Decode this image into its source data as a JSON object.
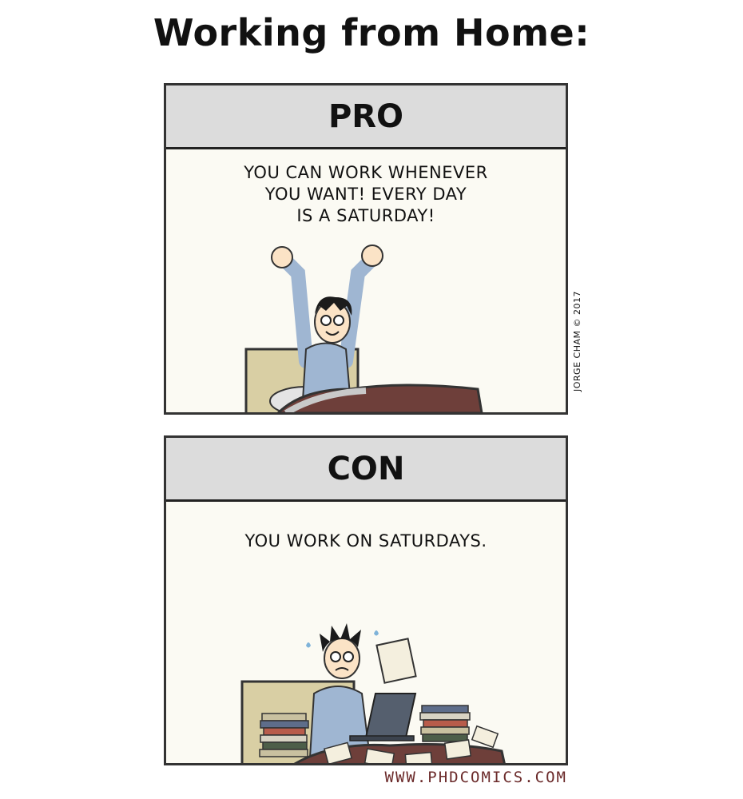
{
  "title": "Working from Home:",
  "panels": {
    "pro": {
      "header": "PRO",
      "caption": "YOU CAN WORK WHENEVER\nYOU WANT! EVERY DAY\nIS A SATURDAY!"
    },
    "con": {
      "header": "CON",
      "caption": "YOU WORK ON SATURDAYS."
    }
  },
  "credit": "JORGE CHAM © 2017",
  "footer": "WWW.PHDCOMICS.COM",
  "colors": {
    "panel_bg": "#fbfaf3",
    "header_bg": "#dcdcdc",
    "blanket": "#6e3f3a",
    "pajama": "#9fb6d2",
    "footer": "#6b2a2a"
  }
}
